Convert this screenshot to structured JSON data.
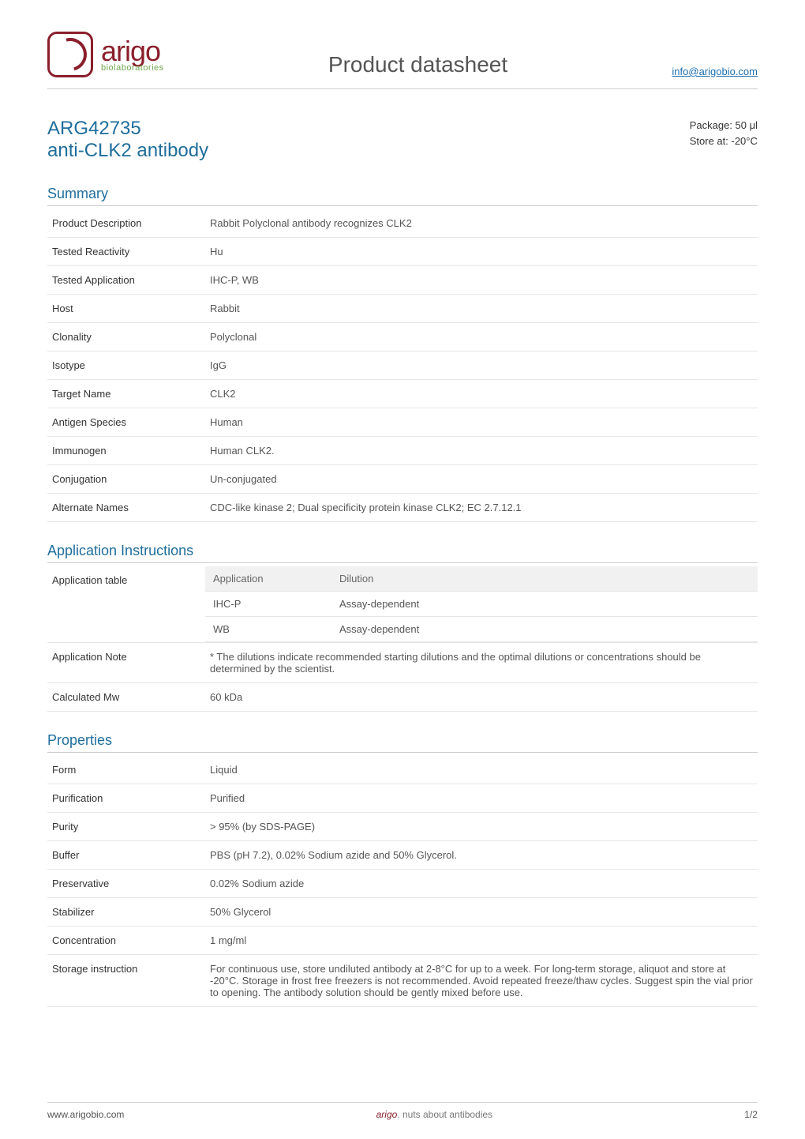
{
  "header": {
    "brand": "arigo",
    "brand_sub": "biolaboratories",
    "page_title": "Product datasheet",
    "email": "info@arigobio.com"
  },
  "product": {
    "code": "ARG42735",
    "name": "anti-CLK2 antibody",
    "package": "Package: 50 μl",
    "store": "Store at: -20°C"
  },
  "sections": {
    "summary": {
      "heading": "Summary",
      "rows": [
        {
          "key": "Product Description",
          "val": "Rabbit Polyclonal antibody recognizes CLK2"
        },
        {
          "key": "Tested Reactivity",
          "val": "Hu"
        },
        {
          "key": "Tested Application",
          "val": "IHC-P, WB"
        },
        {
          "key": "Host",
          "val": "Rabbit"
        },
        {
          "key": "Clonality",
          "val": "Polyclonal"
        },
        {
          "key": "Isotype",
          "val": "IgG"
        },
        {
          "key": "Target Name",
          "val": "CLK2"
        },
        {
          "key": "Antigen Species",
          "val": "Human"
        },
        {
          "key": "Immunogen",
          "val": "Human CLK2."
        },
        {
          "key": "Conjugation",
          "val": "Un-conjugated"
        },
        {
          "key": "Alternate Names",
          "val": "CDC-like kinase 2; Dual specificity protein kinase CLK2; EC 2.7.12.1"
        }
      ]
    },
    "appins": {
      "heading": "Application Instructions",
      "table_label": "Application table",
      "subtable": {
        "columns": [
          "Application",
          "Dilution"
        ],
        "rows": [
          [
            "IHC-P",
            "Assay-dependent"
          ],
          [
            "WB",
            "Assay-dependent"
          ]
        ]
      },
      "note_key": "Application Note",
      "note_val": "* The dilutions indicate recommended starting dilutions and the optimal dilutions or concentrations should be determined by the scientist.",
      "mw_key": "Calculated Mw",
      "mw_val": "60 kDa"
    },
    "properties": {
      "heading": "Properties",
      "rows": [
        {
          "key": "Form",
          "val": "Liquid"
        },
        {
          "key": "Purification",
          "val": "Purified"
        },
        {
          "key": "Purity",
          "val": "> 95% (by SDS-PAGE)"
        },
        {
          "key": "Buffer",
          "val": "PBS (pH 7.2), 0.02% Sodium azide and 50% Glycerol."
        },
        {
          "key": "Preservative",
          "val": "0.02% Sodium azide"
        },
        {
          "key": "Stabilizer",
          "val": "50% Glycerol"
        },
        {
          "key": "Concentration",
          "val": "1 mg/ml"
        },
        {
          "key": "Storage instruction",
          "val": "For continuous use, store undiluted antibody at 2-8°C for up to a week. For long-term storage, aliquot and store at -20°C. Storage in frost free freezers is not recommended. Avoid repeated freeze/thaw cycles. Suggest spin the vial prior to opening. The antibody solution should be gently mixed before use."
        }
      ]
    }
  },
  "footer": {
    "url": "www.arigobio.com",
    "tag_brand": "arigo",
    "tag_rest": ". nuts about antibodies",
    "page": "1/2"
  },
  "style": {
    "accent_blue": "#1f6e9c",
    "accent_red": "#8a1f2b",
    "accent_green": "#6fa84f",
    "border_gray": "#cccccc",
    "row_border": "#e6e6e6",
    "text_primary": "#333333",
    "text_secondary": "#555555",
    "subtable_header_bg": "#f1f1f1",
    "background": "#ffffff"
  }
}
